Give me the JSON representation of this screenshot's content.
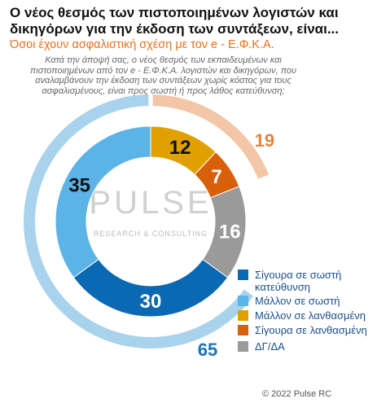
{
  "chart_data": {
    "type": "donut",
    "title": "Ο νέος θεσμός των πιστοποιημένων λογιστών και δικηγόρων για την έκδοση των συντάξεων, είναι...",
    "subtitle": "Όσοι έχουν ασφαλιστική σχέση με τον e - Ε.Φ.Κ.Α.",
    "question": "Κατά την άποψή σας, ο νέος θεσμός των εκπαιδευμένων και πιστοποιημένων από τον e - Ε.Φ.Κ.Α. λογιστών και δικηγόρων, που αναλαμβάνουν την έκδοση των συντάξεων χωρίς κόστος για τους ασφαλισμένους, είναι προς σωστή ή προς λάθος κατεύθυνση;",
    "series": [
      {
        "name": "Σίγουρα σε σωστή κατεύθυνση",
        "color": "#0b69b3",
        "label_color": "#ffffff",
        "values": [
          30
        ]
      },
      {
        "name": "Μάλλον σε σωστή",
        "color": "#5bb3e6",
        "label_color": "#111111",
        "values": [
          35
        ]
      },
      {
        "name": "Μάλλον σε λανθασμένη",
        "color": "#e0a100",
        "label_color": "#111111",
        "values": [
          12
        ]
      },
      {
        "name": "Σίγουρα σε λανθασμένη",
        "color": "#d9600b",
        "label_color": "#ffffff",
        "values": [
          7
        ]
      },
      {
        "name": "ΔΓ/ΔΑ",
        "color": "#9a9a9a",
        "label_color": "#ffffff",
        "values": [
          16
        ]
      }
    ],
    "group_arcs": [
      {
        "value": 65,
        "color": "#a9d3ec",
        "label_color": "#1a73b8",
        "direction": "counterclockwise"
      },
      {
        "value": 19,
        "color": "#f2c6a6",
        "label_color": "#e8823a",
        "direction": "clockwise"
      }
    ],
    "watermark": "PULSE",
    "watermark_sub": "RESEARCH & CONSULTING",
    "footer": "© 2022 Pulse RC"
  }
}
